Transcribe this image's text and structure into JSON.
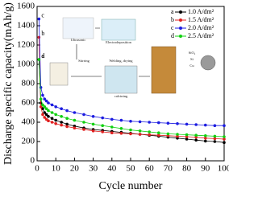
{
  "chart_data": {
    "type": "line",
    "xlabel": "Cycle number",
    "ylabel": "Discharge specific capacity(mAh/g)",
    "x": [
      1,
      2,
      3,
      4,
      5,
      6,
      8,
      10,
      13,
      16,
      20,
      25,
      30,
      35,
      40,
      45,
      50,
      55,
      60,
      65,
      70,
      75,
      80,
      85,
      90,
      95,
      100
    ],
    "series": [
      {
        "label": "a",
        "name": "1.0 A/dm²",
        "color": "#000000",
        "values": [
          1050,
          600,
          540,
          500,
          480,
          460,
          440,
          420,
          400,
          380,
          360,
          340,
          325,
          315,
          305,
          295,
          285,
          275,
          265,
          255,
          245,
          235,
          225,
          215,
          205,
          200,
          190
        ]
      },
      {
        "label": "b",
        "name": "1.5 A/dm²",
        "color": "#e02020",
        "values": [
          1280,
          560,
          480,
          450,
          430,
          415,
          400,
          385,
          370,
          355,
          340,
          325,
          310,
          300,
          290,
          285,
          280,
          275,
          270,
          265,
          260,
          255,
          250,
          245,
          235,
          230,
          225
        ]
      },
      {
        "label": "c",
        "name": "2.0 A/dm²",
        "color": "#1c1ce0",
        "values": [
          1470,
          760,
          680,
          640,
          620,
          600,
          580,
          560,
          540,
          520,
          500,
          480,
          460,
          445,
          430,
          420,
          410,
          405,
          400,
          395,
          390,
          385,
          380,
          375,
          370,
          365,
          365
        ]
      },
      {
        "label": "d",
        "name": "2.5 A/dm²",
        "color": "#10d010",
        "values": [
          1050,
          640,
          580,
          560,
          540,
          520,
          500,
          480,
          460,
          440,
          420,
          400,
          380,
          365,
          350,
          335,
          320,
          310,
          300,
          290,
          280,
          275,
          270,
          265,
          260,
          255,
          250
        ]
      }
    ],
    "xlim": [
      0,
      100
    ],
    "xticks": [
      0,
      10,
      20,
      30,
      40,
      50,
      60,
      70,
      80,
      90,
      100
    ],
    "ylim": [
      0,
      1600
    ],
    "yticks": [
      0,
      200,
      400,
      600,
      800,
      1000,
      1200,
      1400,
      1600
    ],
    "legend": "upper right",
    "inset": {
      "labels": [
        "Ultrasonic",
        "Electrodeposition",
        "Stirring",
        "Welding, drying",
        "calcining",
        "SiO₂",
        "Si",
        "Cu"
      ]
    }
  }
}
